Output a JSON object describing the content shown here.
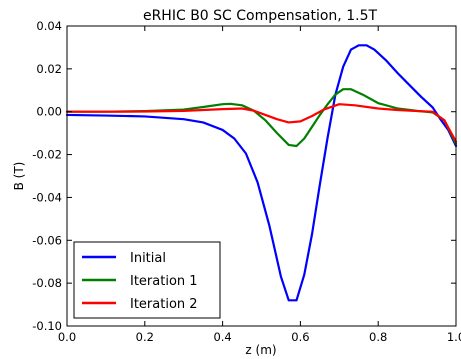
{
  "chart_data": {
    "type": "line",
    "title": "eRHIC B0 SC Compensation, 1.5T",
    "xlabel": "z (m)",
    "ylabel": "B (T)",
    "xlim": [
      0.0,
      1.0
    ],
    "ylim": [
      -0.1,
      0.04
    ],
    "xticks": [
      "0.0",
      "0.2",
      "0.4",
      "0.6",
      "0.8",
      "1.0"
    ],
    "yticks": [
      "0.04",
      "0.02",
      "0.00",
      "-0.02",
      "-0.04",
      "-0.06",
      "-0.08",
      "-0.10"
    ],
    "grid": false,
    "legend_position": "bottom-left",
    "series": [
      {
        "name": "Initial",
        "color": "#0000ff",
        "x": [
          0.0,
          0.1,
          0.2,
          0.3,
          0.35,
          0.4,
          0.43,
          0.46,
          0.49,
          0.52,
          0.55,
          0.57,
          0.59,
          0.61,
          0.63,
          0.65,
          0.67,
          0.69,
          0.71,
          0.73,
          0.75,
          0.77,
          0.79,
          0.82,
          0.85,
          0.88,
          0.91,
          0.94,
          0.96,
          0.98,
          1.0
        ],
        "y": [
          -0.0015,
          -0.0018,
          -0.0022,
          -0.0035,
          -0.005,
          -0.0085,
          -0.0125,
          -0.0195,
          -0.033,
          -0.053,
          -0.077,
          -0.088,
          -0.088,
          -0.076,
          -0.057,
          -0.034,
          -0.012,
          0.008,
          0.021,
          0.029,
          0.031,
          0.031,
          0.029,
          0.024,
          0.018,
          0.0125,
          0.007,
          0.002,
          -0.0035,
          -0.0085,
          -0.016
        ]
      },
      {
        "name": "Iteration 1",
        "color": "#008000",
        "x": [
          0.0,
          0.1,
          0.2,
          0.3,
          0.35,
          0.4,
          0.42,
          0.45,
          0.48,
          0.51,
          0.54,
          0.57,
          0.59,
          0.61,
          0.63,
          0.65,
          0.67,
          0.69,
          0.71,
          0.73,
          0.76,
          0.8,
          0.85,
          0.9,
          0.94,
          0.97,
          1.0
        ],
        "y": [
          0.0,
          0.0,
          0.0003,
          0.001,
          0.0022,
          0.0035,
          0.0037,
          0.003,
          0.0005,
          -0.004,
          -0.01,
          -0.0155,
          -0.016,
          -0.0125,
          -0.007,
          -0.0015,
          0.0035,
          0.008,
          0.0105,
          0.0105,
          0.008,
          0.004,
          0.0015,
          0.0004,
          -0.0003,
          -0.004,
          -0.015
        ]
      },
      {
        "name": "Iteration 2",
        "color": "#ff0000",
        "x": [
          0.0,
          0.1,
          0.2,
          0.3,
          0.4,
          0.45,
          0.48,
          0.51,
          0.54,
          0.57,
          0.6,
          0.63,
          0.66,
          0.7,
          0.74,
          0.8,
          0.85,
          0.9,
          0.94,
          0.97,
          1.0
        ],
        "y": [
          0.0,
          0.0,
          0.0001,
          0.0004,
          0.0012,
          0.0015,
          0.0005,
          -0.0015,
          -0.0035,
          -0.005,
          -0.0045,
          -0.002,
          0.001,
          0.0035,
          0.003,
          0.0015,
          0.0008,
          0.0003,
          0.0,
          -0.004,
          -0.014
        ]
      }
    ]
  }
}
